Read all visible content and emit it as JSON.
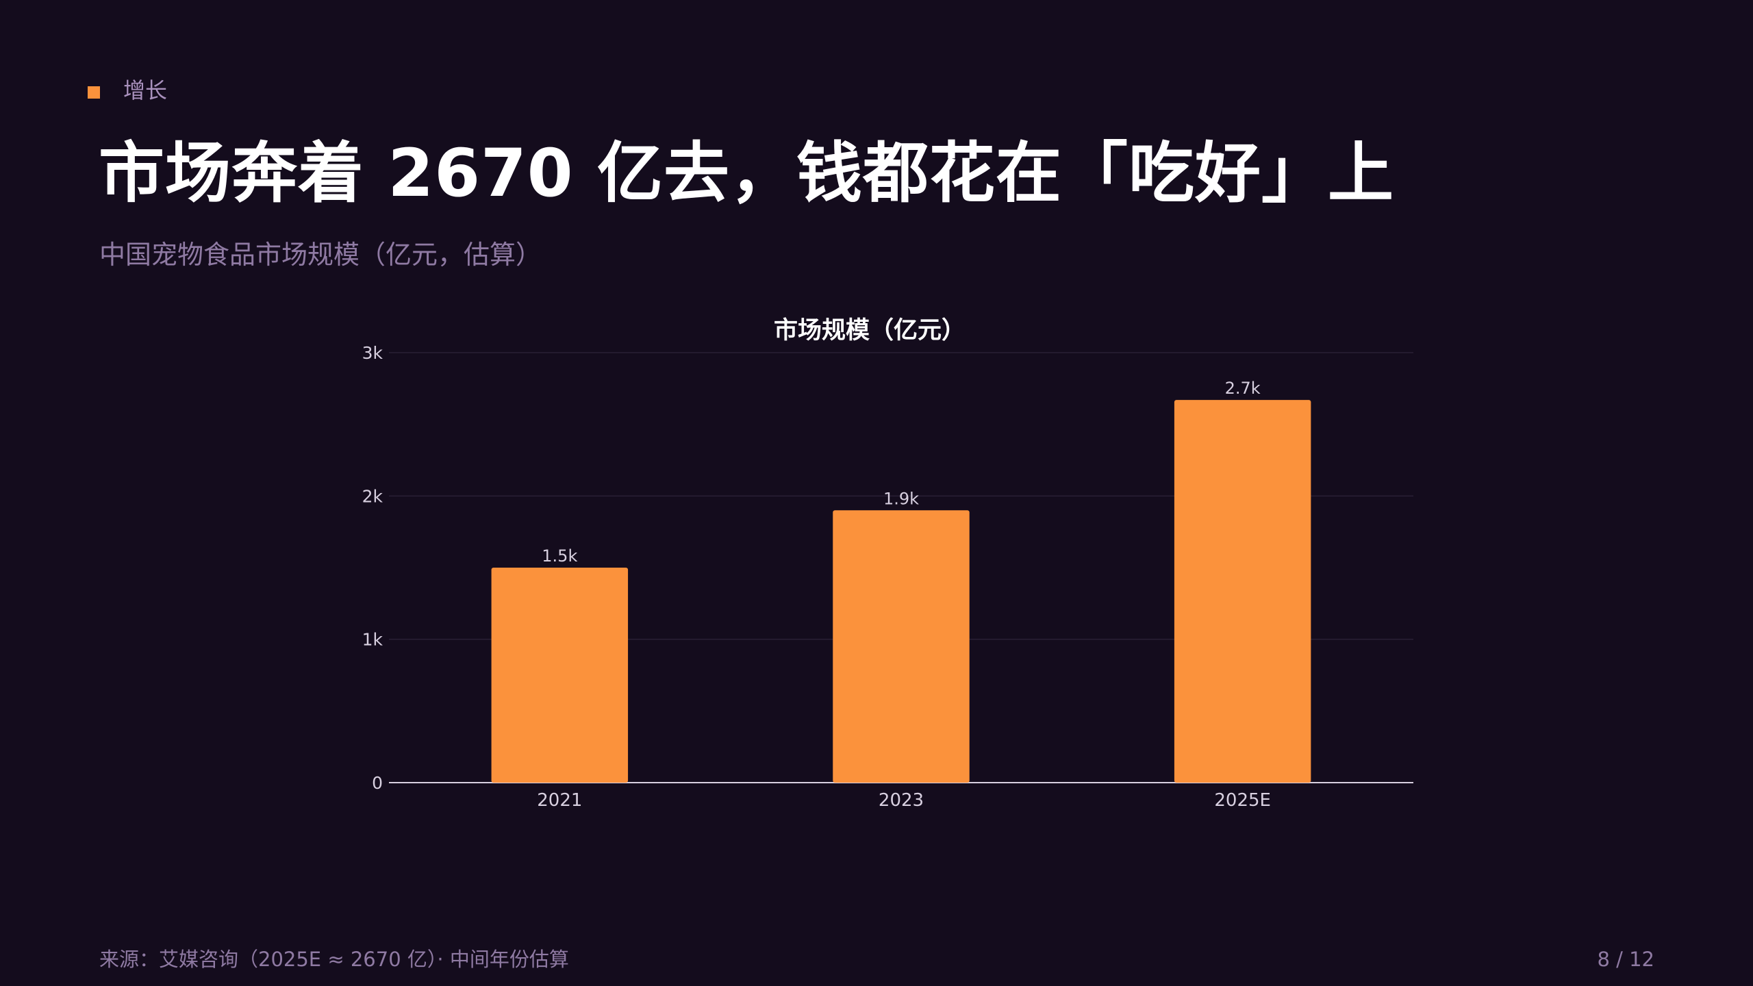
{
  "slide": {
    "kicker": "增长",
    "title": "市场奔着 2670 亿去，钱都花在「吃好」上",
    "subtitle": "中国宠物食品市场规模（亿元，估算）",
    "source": "来源：艾媒咨询（2025E ≈ 2670 亿）· 中间年份估算",
    "page": "8 / 12"
  },
  "colors": {
    "background": "#140c1d",
    "bar": "#fb923c",
    "accent": "#fb923c",
    "grid": "#2a2035",
    "axis": "#d8d0e0",
    "muted_text": "#8f7aa3",
    "tick_text": "#d8d0e0"
  },
  "chart_data": {
    "type": "bar",
    "title": "市场规模（亿元）",
    "categories": [
      "2021",
      "2023",
      "2025E"
    ],
    "values": [
      1500,
      1900,
      2670
    ],
    "data_labels": [
      "1.5k",
      "1.9k",
      "2.7k"
    ],
    "ylim": [
      0,
      3000
    ],
    "yticks": [
      0,
      1000,
      2000,
      3000
    ],
    "ytick_labels": [
      "0",
      "1k",
      "2k",
      "3k"
    ],
    "xlabel": "",
    "ylabel": "",
    "grid": true,
    "legend": "none"
  }
}
